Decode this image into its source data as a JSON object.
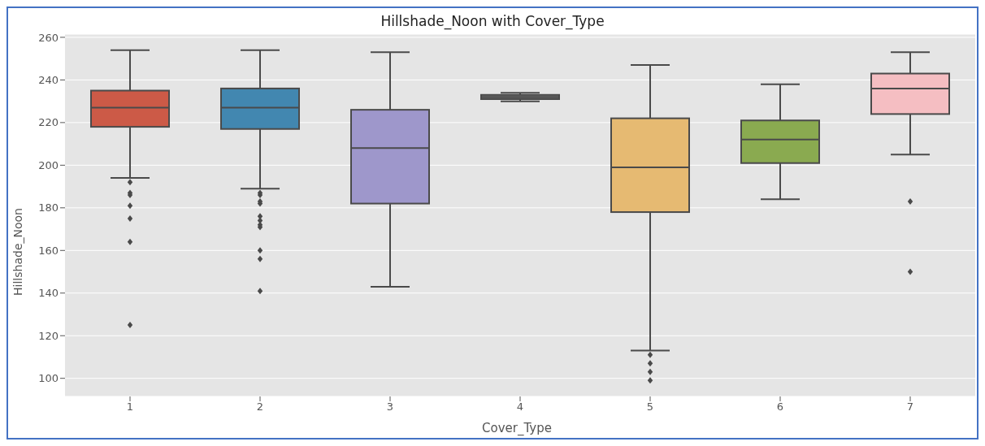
{
  "chart_data": {
    "type": "box",
    "title": "Hillshade_Noon with Cover_Type",
    "xlabel": "Cover_Type",
    "ylabel": "Hillshade_Noon",
    "categories": [
      "1",
      "2",
      "3",
      "4",
      "5",
      "6",
      "7"
    ],
    "colors": [
      "#cc5a47",
      "#4287b0",
      "#9e97cb",
      "#777777",
      "#e6ba72",
      "#8aaa50",
      "#f5bec2"
    ],
    "boxes": [
      {
        "low": 194,
        "q1": 218,
        "median": 227,
        "q3": 235,
        "high": 254,
        "outliers": [
          192,
          187,
          186,
          181,
          175,
          164,
          125
        ]
      },
      {
        "low": 189,
        "q1": 217,
        "median": 227,
        "q3": 236,
        "high": 254,
        "outliers": [
          187,
          186,
          183,
          182,
          176,
          174,
          172,
          171,
          160,
          156,
          141
        ]
      },
      {
        "low": 143,
        "q1": 182,
        "median": 208,
        "q3": 226,
        "high": 253
      },
      {
        "low": 230,
        "q1": 231,
        "median": 232,
        "q3": 233,
        "high": 234
      },
      {
        "low": 113,
        "q1": 178,
        "median": 199,
        "q3": 222,
        "high": 247,
        "outliers": [
          111,
          107,
          103,
          99
        ]
      },
      {
        "low": 184,
        "q1": 201,
        "median": 212,
        "q3": 221,
        "high": 238
      },
      {
        "low": 205,
        "q1": 224,
        "median": 236,
        "q3": 243,
        "high": 253,
        "outliers": [
          183,
          150
        ]
      }
    ],
    "ylim": [
      91.5,
      261.5
    ],
    "yticks": [
      100,
      120,
      140,
      160,
      180,
      200,
      220,
      240,
      260
    ],
    "grid": "y",
    "marker": "diamond"
  }
}
